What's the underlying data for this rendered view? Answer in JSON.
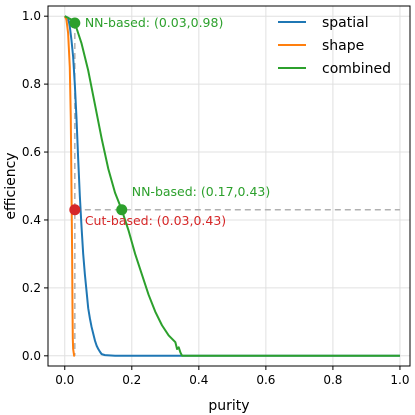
{
  "chart_data": {
    "type": "line",
    "xlabel": "purity",
    "ylabel": "efficiency",
    "xlim": [
      -0.05,
      1.03
    ],
    "ylim": [
      -0.03,
      1.03
    ],
    "xticks": [
      0.0,
      0.2,
      0.4,
      0.6,
      0.8,
      1.0
    ],
    "yticks": [
      0.0,
      0.2,
      0.4,
      0.6,
      0.8,
      1.0
    ],
    "xtick_labels": [
      "0.0",
      "0.2",
      "0.4",
      "0.6",
      "0.8",
      "1.0"
    ],
    "ytick_labels": [
      "0.0",
      "0.2",
      "0.4",
      "0.6",
      "0.8",
      "1.0"
    ],
    "grid": true,
    "legend_position": "top-right",
    "series": [
      {
        "name": "spatial",
        "color": "#1f77b4",
        "points": [
          [
            0.0,
            1.0
          ],
          [
            0.01,
            0.995
          ],
          [
            0.015,
            0.97
          ],
          [
            0.02,
            0.93
          ],
          [
            0.025,
            0.88
          ],
          [
            0.03,
            0.8
          ],
          [
            0.035,
            0.7
          ],
          [
            0.04,
            0.58
          ],
          [
            0.045,
            0.47
          ],
          [
            0.05,
            0.38
          ],
          [
            0.055,
            0.3
          ],
          [
            0.06,
            0.24
          ],
          [
            0.065,
            0.19
          ],
          [
            0.07,
            0.14
          ],
          [
            0.075,
            0.11
          ],
          [
            0.08,
            0.085
          ],
          [
            0.085,
            0.065
          ],
          [
            0.09,
            0.045
          ],
          [
            0.095,
            0.03
          ],
          [
            0.1,
            0.02
          ],
          [
            0.105,
            0.012
          ],
          [
            0.11,
            0.005
          ],
          [
            0.12,
            0.002
          ],
          [
            0.15,
            0.0
          ],
          [
            1.0,
            0.0
          ]
        ]
      },
      {
        "name": "shape",
        "color": "#ff7f0e",
        "points": [
          [
            0.0,
            1.0
          ],
          [
            0.005,
            0.99
          ],
          [
            0.01,
            0.95
          ],
          [
            0.015,
            0.85
          ],
          [
            0.018,
            0.7
          ],
          [
            0.02,
            0.5
          ],
          [
            0.022,
            0.3
          ],
          [
            0.023,
            0.15
          ],
          [
            0.024,
            0.05
          ],
          [
            0.025,
            0.02
          ],
          [
            0.028,
            0.0
          ],
          [
            0.03,
            0.0
          ]
        ]
      },
      {
        "name": "combined",
        "color": "#2ca02c",
        "points": [
          [
            0.0,
            1.0
          ],
          [
            0.01,
            0.995
          ],
          [
            0.02,
            0.99
          ],
          [
            0.03,
            0.98
          ],
          [
            0.05,
            0.92
          ],
          [
            0.07,
            0.84
          ],
          [
            0.09,
            0.74
          ],
          [
            0.11,
            0.64
          ],
          [
            0.13,
            0.55
          ],
          [
            0.15,
            0.48
          ],
          [
            0.17,
            0.43
          ],
          [
            0.19,
            0.37
          ],
          [
            0.21,
            0.3
          ],
          [
            0.23,
            0.24
          ],
          [
            0.25,
            0.18
          ],
          [
            0.27,
            0.13
          ],
          [
            0.29,
            0.09
          ],
          [
            0.31,
            0.06
          ],
          [
            0.33,
            0.04
          ],
          [
            0.335,
            0.02
          ],
          [
            0.34,
            0.025
          ],
          [
            0.345,
            0.01
          ],
          [
            0.35,
            0.0
          ],
          [
            1.0,
            0.0
          ]
        ]
      }
    ],
    "reference_lines": {
      "color": "#b0b0b0",
      "horizontal_y": 0.43,
      "vertical_x": [
        0.03,
        0.03
      ]
    },
    "markers": [
      {
        "x": 0.03,
        "y": 0.98,
        "color": "#2ca02c",
        "label": "NN-based: (0.03,0.98)"
      },
      {
        "x": 0.17,
        "y": 0.43,
        "color": "#2ca02c",
        "label": "NN-based: (0.17,0.43)"
      },
      {
        "x": 0.03,
        "y": 0.43,
        "color": "#d62728",
        "label": "Cut-based: (0.03,0.43)"
      }
    ]
  }
}
